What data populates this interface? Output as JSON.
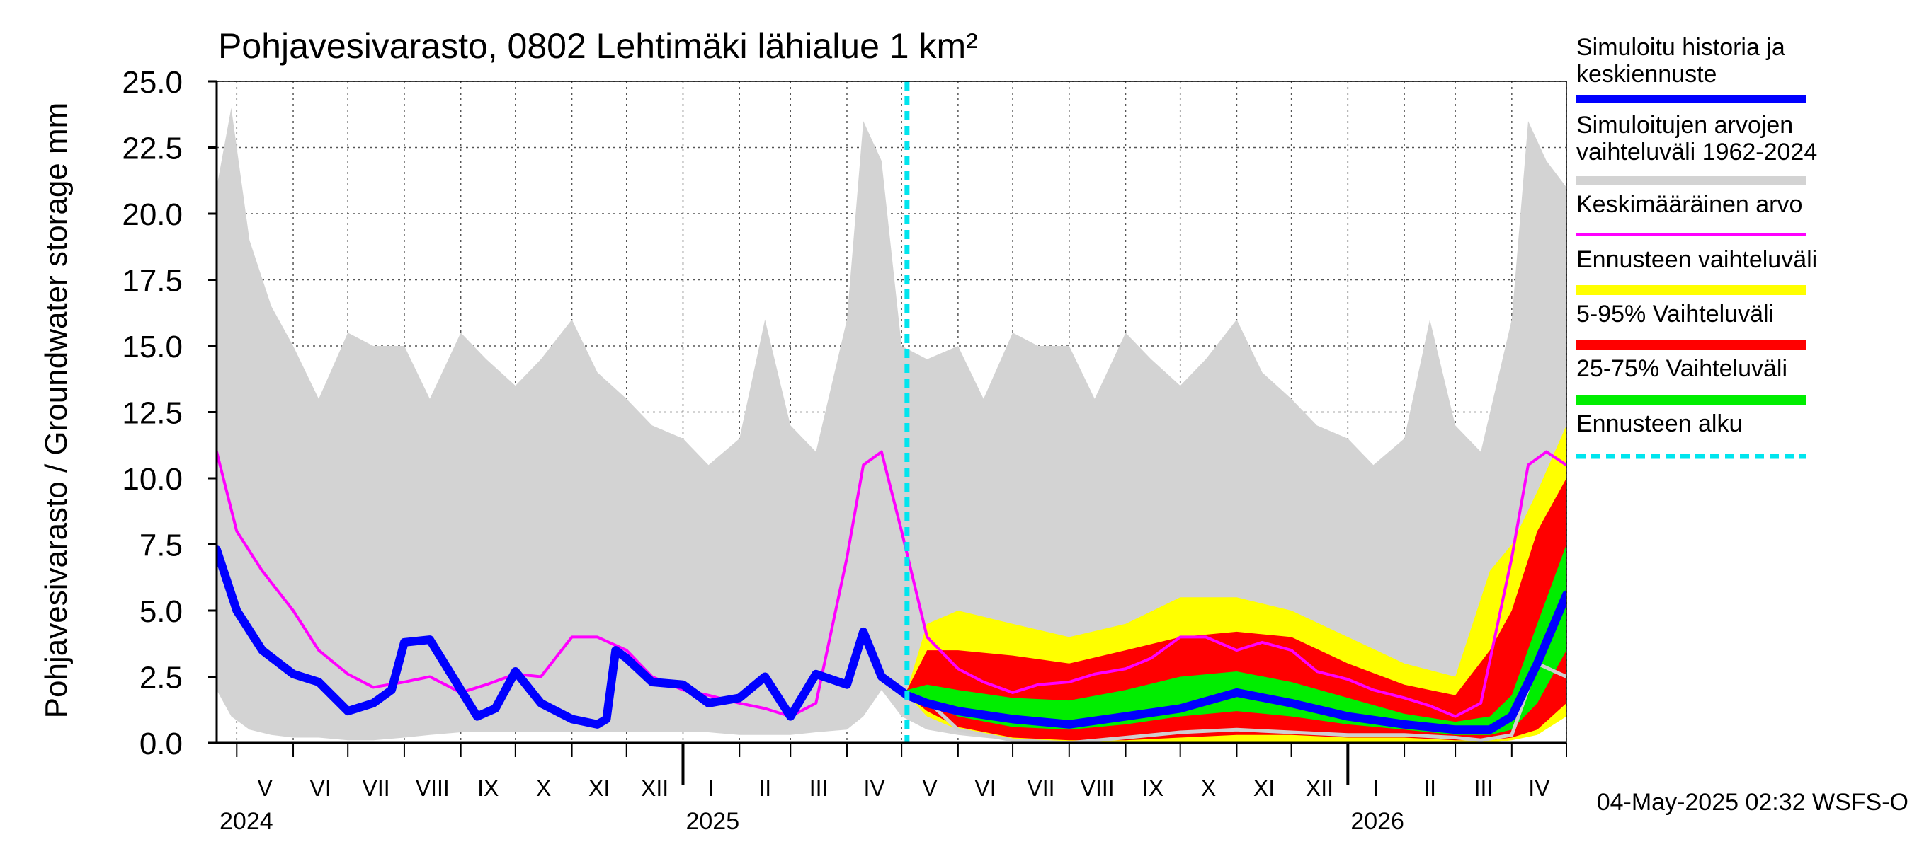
{
  "chart_data": {
    "type": "area",
    "title": "Pohjavesivarasto, 0802 Lehtimäki lähialue 1 km²",
    "ylabel": "Pohjavesivarasto / Groundwater storage   mm",
    "ylim": [
      0,
      25
    ],
    "yticks": [
      "0.0",
      "2.5",
      "5.0",
      "7.5",
      "10.0",
      "12.5",
      "15.0",
      "17.5",
      "20.0",
      "22.5",
      "25.0"
    ],
    "xlim": [
      "2024-04-20",
      "2026-05-01"
    ],
    "month_labels": [
      "V",
      "VI",
      "VII",
      "VIII",
      "IX",
      "X",
      "XI",
      "XII",
      "I",
      "II",
      "III",
      "IV",
      "V",
      "VI",
      "VII",
      "VIII",
      "IX",
      "X",
      "XI",
      "XII",
      "I",
      "II",
      "III",
      "IV"
    ],
    "year_labels": [
      "2024",
      "2025",
      "2026"
    ],
    "forecast_start": "2025-05-04",
    "footer": "04-May-2025 02:32 WSFS-O",
    "grid": true,
    "legend_position": "right",
    "legend": [
      {
        "label": "Simuloitu historia ja keskiennuste",
        "color": "#0000ff",
        "style": "thick"
      },
      {
        "label": "Simuloitujen arvojen vaihteluväli 1962-2024",
        "color": "#d3d3d3",
        "style": "thick"
      },
      {
        "label": "Keskimääräinen arvo",
        "color": "#ff00ff",
        "style": "thin"
      },
      {
        "label": "Ennusteen vaihteluväli",
        "color": "#ffff00",
        "style": "thick"
      },
      {
        "label": "5-95% Vaihteluväli",
        "color": "#ff0000",
        "style": "thick"
      },
      {
        "label": "25-75% Vaihteluväli",
        "color": "#00ee00",
        "style": "thick"
      },
      {
        "label": "Ennusteen alku",
        "color": "#00e5ee",
        "style": "dashed"
      }
    ],
    "series": {
      "history_range": {
        "x": [
          "2024-04-20",
          "2024-04-28",
          "2024-05-08",
          "2024-05-20",
          "2024-06-01",
          "2024-06-15",
          "2024-07-01",
          "2024-07-15",
          "2024-08-01",
          "2024-08-15",
          "2024-09-01",
          "2024-09-15",
          "2024-10-01",
          "2024-10-15",
          "2024-11-01",
          "2024-11-15",
          "2024-12-01",
          "2024-12-15",
          "2025-01-01",
          "2025-01-15",
          "2025-02-01",
          "2025-02-15",
          "2025-03-01",
          "2025-03-15",
          "2025-04-01",
          "2025-04-10",
          "2025-04-20",
          "2025-05-01",
          "2025-05-15",
          "2025-06-01",
          "2025-06-15",
          "2025-07-01",
          "2025-07-15",
          "2025-08-01",
          "2025-08-15",
          "2025-09-01",
          "2025-09-15",
          "2025-10-01",
          "2025-10-15",
          "2025-11-01",
          "2025-11-15",
          "2025-12-01",
          "2025-12-15",
          "2026-01-01",
          "2026-01-15",
          "2026-02-01",
          "2026-02-15",
          "2026-03-01",
          "2026-03-15",
          "2026-04-01",
          "2026-04-10",
          "2026-04-20",
          "2026-05-01"
        ],
        "lower": [
          2.0,
          1.0,
          0.5,
          0.3,
          0.2,
          0.2,
          0.1,
          0.1,
          0.2,
          0.3,
          0.4,
          0.4,
          0.4,
          0.4,
          0.4,
          0.4,
          0.4,
          0.4,
          0.4,
          0.4,
          0.3,
          0.3,
          0.3,
          0.4,
          0.5,
          1.0,
          2.0,
          1.0,
          0.5,
          0.3,
          0.2,
          0.1,
          0.1,
          0.2,
          0.3,
          0.4,
          0.4,
          0.4,
          0.4,
          0.4,
          0.4,
          0.4,
          0.4,
          0.4,
          0.4,
          0.3,
          0.3,
          0.3,
          0.4,
          0.5,
          1.0,
          2.0,
          1.0
        ],
        "upper": [
          21.0,
          24.0,
          19.0,
          16.5,
          15.0,
          13.0,
          15.5,
          15.0,
          15.0,
          13.0,
          15.5,
          14.5,
          13.5,
          14.5,
          16.0,
          14.0,
          13.0,
          12.0,
          11.5,
          10.5,
          11.5,
          16.0,
          12.0,
          11.0,
          16.0,
          23.5,
          22.0,
          15.0,
          14.5,
          15.0,
          13.0,
          15.5,
          15.0,
          15.0,
          13.0,
          15.5,
          14.5,
          13.5,
          14.5,
          16.0,
          14.0,
          13.0,
          12.0,
          11.5,
          10.5,
          11.5,
          16.0,
          12.0,
          11.0,
          16.0,
          23.5,
          22.0,
          21.0
        ]
      },
      "forecast_outer": {
        "x": [
          "2025-05-04",
          "2025-05-15",
          "2025-06-01",
          "2025-07-01",
          "2025-08-01",
          "2025-09-01",
          "2025-10-01",
          "2025-11-01",
          "2025-12-01",
          "2026-01-01",
          "2026-02-01",
          "2026-03-01",
          "2026-03-20",
          "2026-04-01",
          "2026-04-15",
          "2026-05-01"
        ],
        "lower": [
          1.8,
          1.0,
          0.5,
          0.1,
          0.0,
          0.0,
          0.0,
          0.0,
          0.0,
          0.0,
          0.0,
          0.0,
          0.0,
          0.1,
          0.3,
          1.0
        ],
        "upper": [
          2.0,
          4.5,
          5.0,
          4.5,
          4.0,
          4.5,
          5.5,
          5.5,
          5.0,
          4.0,
          3.0,
          2.5,
          6.5,
          7.5,
          9.5,
          12.0
        ]
      },
      "forecast_5_95": {
        "x": [
          "2025-05-04",
          "2025-05-15",
          "2025-06-01",
          "2025-07-01",
          "2025-08-01",
          "2025-09-01",
          "2025-10-01",
          "2025-11-01",
          "2025-12-01",
          "2026-01-01",
          "2026-02-01",
          "2026-03-01",
          "2026-03-20",
          "2026-04-01",
          "2026-04-15",
          "2026-05-01"
        ],
        "lower": [
          1.8,
          1.2,
          0.6,
          0.2,
          0.1,
          0.1,
          0.2,
          0.3,
          0.3,
          0.2,
          0.2,
          0.1,
          0.1,
          0.2,
          0.5,
          1.5
        ],
        "upper": [
          2.0,
          3.5,
          3.5,
          3.3,
          3.0,
          3.5,
          4.0,
          4.2,
          4.0,
          3.0,
          2.2,
          1.8,
          3.5,
          5.0,
          8.0,
          10.0
        ]
      },
      "forecast_25_75": {
        "x": [
          "2025-05-04",
          "2025-05-15",
          "2025-06-01",
          "2025-07-01",
          "2025-08-01",
          "2025-09-01",
          "2025-10-01",
          "2025-11-01",
          "2025-12-01",
          "2026-01-01",
          "2026-02-01",
          "2026-03-01",
          "2026-03-20",
          "2026-04-01",
          "2026-04-15",
          "2026-05-01"
        ],
        "lower": [
          1.8,
          1.5,
          1.0,
          0.6,
          0.5,
          0.7,
          1.0,
          1.2,
          1.0,
          0.7,
          0.5,
          0.3,
          0.3,
          0.5,
          1.5,
          3.5
        ],
        "upper": [
          2.0,
          2.2,
          2.0,
          1.7,
          1.6,
          2.0,
          2.5,
          2.7,
          2.3,
          1.7,
          1.1,
          0.8,
          1.0,
          1.8,
          4.5,
          7.5
        ]
      },
      "mean": {
        "x": [
          "2024-04-20",
          "2024-05-01",
          "2024-05-15",
          "2024-06-01",
          "2024-06-15",
          "2024-07-01",
          "2024-07-15",
          "2024-08-01",
          "2024-08-15",
          "2024-09-01",
          "2024-09-15",
          "2024-10-01",
          "2024-10-15",
          "2024-11-01",
          "2024-11-15",
          "2024-12-01",
          "2024-12-15",
          "2025-01-01",
          "2025-01-15",
          "2025-02-01",
          "2025-02-15",
          "2025-03-01",
          "2025-03-15",
          "2025-04-01",
          "2025-04-10",
          "2025-04-20",
          "2025-05-01",
          "2025-05-15",
          "2025-06-01",
          "2025-06-15",
          "2025-07-01",
          "2025-07-15",
          "2025-08-01",
          "2025-08-15",
          "2025-09-01",
          "2025-09-15",
          "2025-10-01",
          "2025-10-15",
          "2025-11-01",
          "2025-11-15",
          "2025-12-01",
          "2025-12-15",
          "2026-01-01",
          "2026-01-15",
          "2026-02-01",
          "2026-02-15",
          "2026-03-01",
          "2026-03-15",
          "2026-04-01",
          "2026-04-10",
          "2026-04-20",
          "2026-05-01"
        ],
        "y": [
          11.0,
          8.0,
          6.5,
          5.0,
          3.5,
          2.6,
          2.1,
          2.3,
          2.5,
          1.9,
          2.2,
          2.6,
          2.5,
          4.0,
          4.0,
          3.5,
          2.5,
          2.0,
          1.8,
          1.5,
          1.3,
          1.0,
          1.5,
          7.0,
          10.5,
          11.0,
          8.0,
          4.0,
          2.8,
          2.3,
          1.9,
          2.2,
          2.3,
          2.6,
          2.8,
          3.2,
          4.0,
          4.0,
          3.5,
          3.8,
          3.5,
          2.7,
          2.4,
          2.0,
          1.7,
          1.4,
          1.0,
          1.5,
          7.0,
          10.5,
          11.0,
          10.5
        ]
      },
      "simulated_history": {
        "x": [
          "2024-04-20",
          "2024-05-01",
          "2024-05-15",
          "2024-06-01",
          "2024-06-15",
          "2024-07-01",
          "2024-07-15",
          "2024-07-25",
          "2024-08-01",
          "2024-08-15",
          "2024-09-01",
          "2024-09-10",
          "2024-09-20",
          "2024-10-01",
          "2024-10-15",
          "2024-11-01",
          "2024-11-15",
          "2024-11-20",
          "2024-11-25",
          "2024-12-01",
          "2024-12-15",
          "2025-01-01",
          "2025-01-15",
          "2025-02-01",
          "2025-02-15",
          "2025-03-01",
          "2025-03-15",
          "2025-04-01",
          "2025-04-10",
          "2025-04-20",
          "2025-05-04"
        ],
        "y": [
          7.3,
          5.0,
          3.5,
          2.6,
          2.3,
          1.2,
          1.5,
          2.0,
          3.8,
          3.9,
          2.0,
          1.0,
          1.3,
          2.7,
          1.5,
          0.9,
          0.7,
          0.9,
          3.5,
          3.2,
          2.3,
          2.2,
          1.5,
          1.7,
          2.5,
          1.0,
          2.6,
          2.2,
          4.2,
          2.5,
          1.8
        ]
      },
      "median_forecast": {
        "x": [
          "2025-05-04",
          "2025-05-15",
          "2025-06-01",
          "2025-07-01",
          "2025-08-01",
          "2025-09-01",
          "2025-10-01",
          "2025-11-01",
          "2025-12-01",
          "2026-01-01",
          "2026-02-01",
          "2026-03-01",
          "2026-03-20",
          "2026-04-01",
          "2026-04-15",
          "2026-05-01"
        ],
        "y": [
          1.8,
          1.5,
          1.2,
          0.9,
          0.7,
          1.0,
          1.3,
          1.9,
          1.5,
          1.0,
          0.7,
          0.5,
          0.5,
          1.0,
          3.0,
          5.6
        ]
      },
      "grey_lower_bound": {
        "x": [
          "2025-05-04",
          "2025-05-15",
          "2025-06-01",
          "2025-07-01",
          "2025-08-01",
          "2025-09-01",
          "2025-10-01",
          "2025-11-01",
          "2025-12-01",
          "2026-01-01",
          "2026-02-01",
          "2026-03-01",
          "2026-03-15",
          "2026-04-01",
          "2026-04-15",
          "2026-05-01"
        ],
        "y": [
          1.9,
          1.6,
          0.5,
          0.1,
          0.0,
          0.2,
          0.4,
          0.5,
          0.4,
          0.3,
          0.3,
          0.2,
          0.1,
          0.3,
          3.0,
          2.5
        ]
      }
    }
  }
}
